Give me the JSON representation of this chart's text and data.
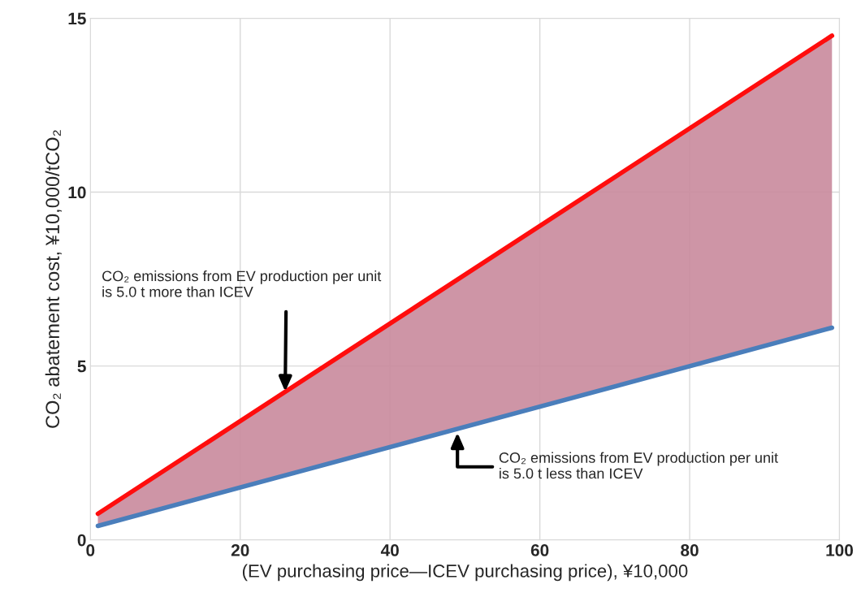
{
  "chart_data": {
    "type": "line",
    "xlabel": "(EV purchasing price―ICEV purchasing price), ¥10,000",
    "ylabel": "CO₂ abatement cost, ¥10,000/tCO₂",
    "x": [
      1,
      99
    ],
    "series": [
      {
        "color": "#ff0d0d",
        "values": [
          0.75,
          14.5
        ]
      },
      {
        "color": "#4a7ebb",
        "values": [
          0.4,
          6.1
        ],
        "lower": [
          0.4,
          6.1
        ],
        "upper": [
          0.75,
          14.5
        ]
      }
    ],
    "xlim": [
      0,
      100
    ],
    "xticks": [
      0,
      20,
      40,
      60,
      80,
      100
    ],
    "ylim": [
      0,
      15
    ],
    "yticks": [
      0,
      5,
      10,
      15
    ],
    "grid": true,
    "marker": "none",
    "line_style": "solid",
    "annotations": [
      "CO₂ emissions from EV production per unit\nis 5.0 t more than ICEV",
      "CO₂ emissions from EV production per unit\nis 5.0 t less than ICEV"
    ]
  }
}
